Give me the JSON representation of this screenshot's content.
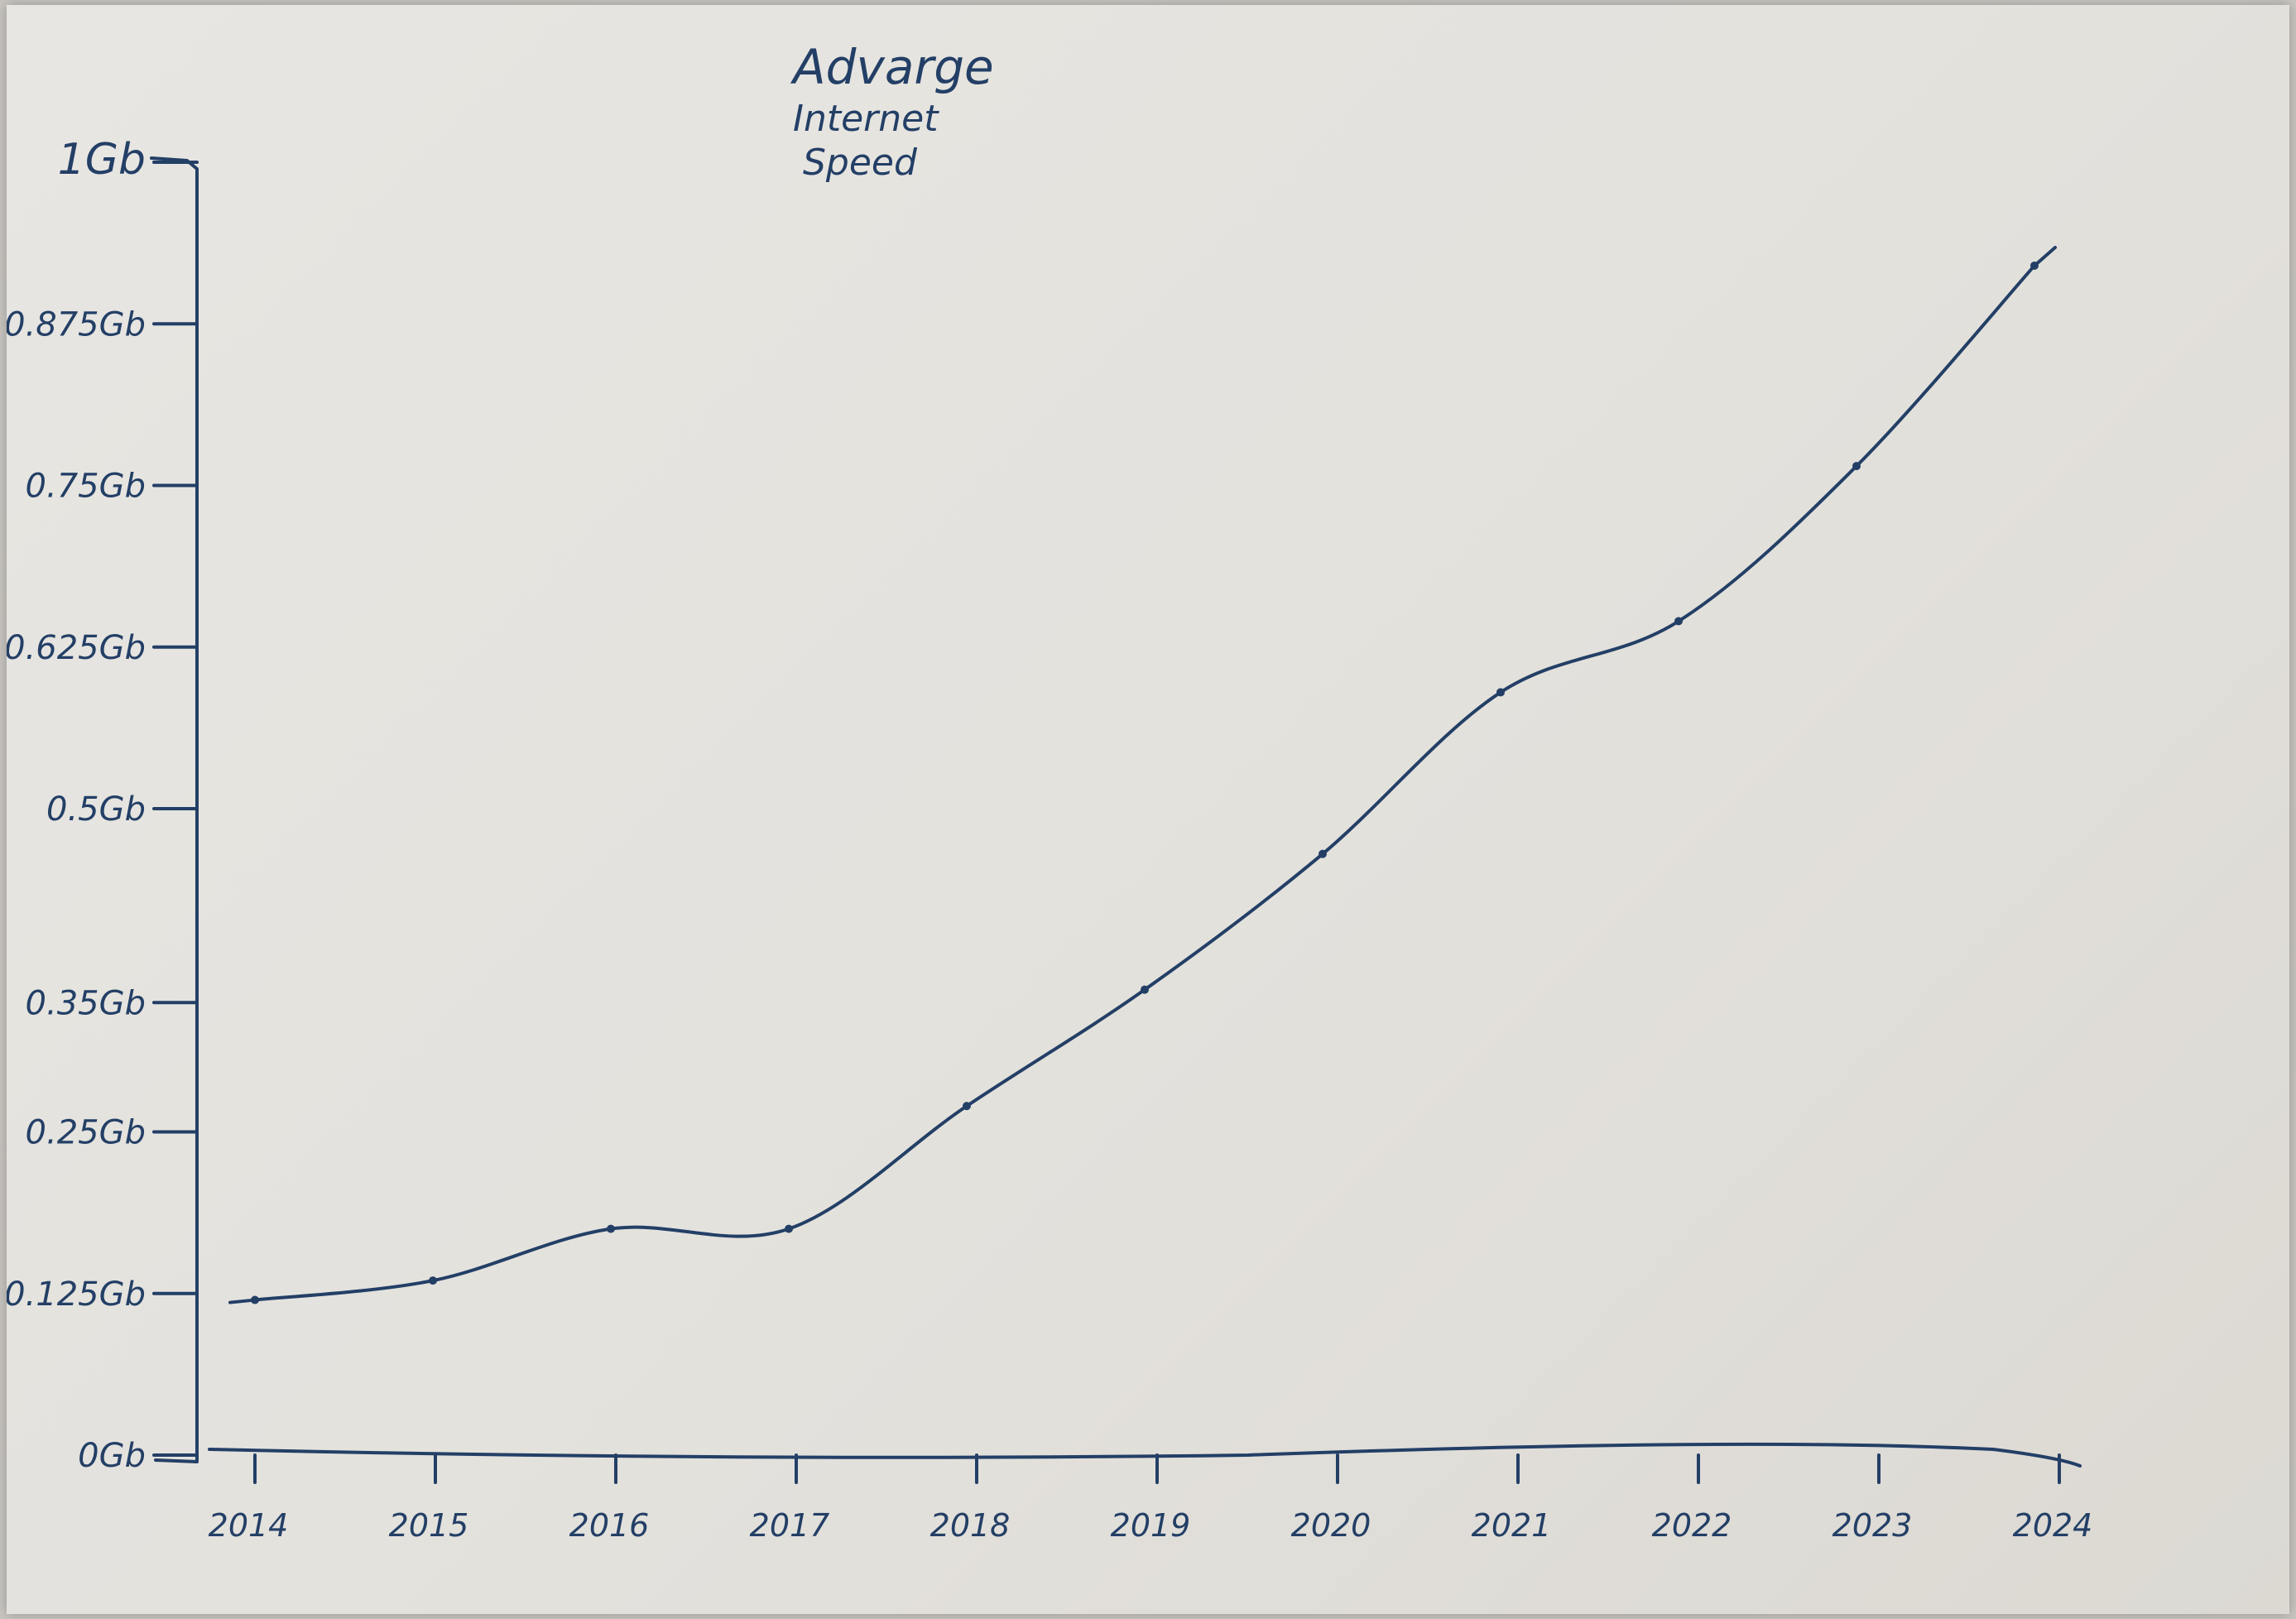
{
  "chart_data": {
    "type": "line",
    "title": [
      "Advarge",
      "Internet",
      "Speed"
    ],
    "xlabel": "",
    "ylabel": "",
    "x_tick_labels": [
      "2014",
      "2015",
      "2016",
      "2017",
      "2018",
      "2019",
      "2020",
      "2021",
      "2022",
      "2023",
      "2024"
    ],
    "y_tick_labels": [
      "0Gb",
      "0.125Gb",
      "0.25Gb",
      "0.35Gb",
      "0.5Gb",
      "0.625Gb",
      "0.75Gb",
      "0.875Gb",
      "1Gb"
    ],
    "y_tick_values": [
      0,
      0.125,
      0.25,
      0.35,
      0.5,
      0.625,
      0.75,
      0.875,
      1
    ],
    "ylim": [
      0,
      1
    ],
    "grid": false,
    "legend": "none",
    "series": [
      {
        "x": [
          2014,
          2015,
          2016,
          2017,
          2018,
          2019,
          2020,
          2021,
          2022,
          2023,
          2024
        ],
        "y": [
          0.12,
          0.135,
          0.175,
          0.175,
          0.27,
          0.36,
          0.465,
          0.59,
          0.645,
          0.765,
          0.92
        ]
      }
    ],
    "colors": {
      "ink": "#233f66"
    }
  }
}
